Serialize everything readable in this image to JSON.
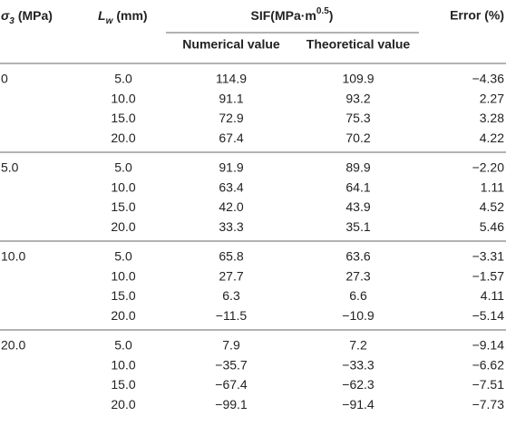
{
  "header": {
    "sigma": {
      "symbol": "σ",
      "subscript": "3",
      "unit": "(MPa)"
    },
    "lw": {
      "symbol": "L",
      "subscript": "w",
      "unit": "(mm)"
    },
    "sif": {
      "text": "SIF(MPa·m",
      "superscript": "0.5",
      "close": ")"
    },
    "numerical": "Numerical value",
    "theoretical": "Theoretical value",
    "error": "Error (%)"
  },
  "groups": [
    {
      "sigma": "0",
      "rows": [
        [
          "5.0",
          "114.9",
          "109.9",
          "−4.36"
        ],
        [
          "10.0",
          "91.1",
          "93.2",
          "2.27"
        ],
        [
          "15.0",
          "72.9",
          "75.3",
          "3.28"
        ],
        [
          "20.0",
          "67.4",
          "70.2",
          "4.22"
        ]
      ]
    },
    {
      "sigma": "5.0",
      "rows": [
        [
          "5.0",
          "91.9",
          "89.9",
          "−2.20"
        ],
        [
          "10.0",
          "63.4",
          "64.1",
          "1.11"
        ],
        [
          "15.0",
          "42.0",
          "43.9",
          "4.52"
        ],
        [
          "20.0",
          "33.3",
          "35.1",
          "5.46"
        ]
      ]
    },
    {
      "sigma": "10.0",
      "rows": [
        [
          "5.0",
          "65.8",
          "63.6",
          "−3.31"
        ],
        [
          "10.0",
          "27.7",
          "27.3",
          "−1.57"
        ],
        [
          "15.0",
          "6.3",
          "6.6",
          "4.11"
        ],
        [
          "20.0",
          "−11.5",
          "−10.9",
          "−5.14"
        ]
      ]
    },
    {
      "sigma": "20.0",
      "rows": [
        [
          "5.0",
          "7.9",
          "7.2",
          "−9.14"
        ],
        [
          "10.0",
          "−35.7",
          "−33.3",
          "−6.62"
        ],
        [
          "15.0",
          "−67.4",
          "−62.3",
          "−7.51"
        ],
        [
          "20.0",
          "−99.1",
          "−91.4",
          "−7.73"
        ]
      ]
    }
  ]
}
